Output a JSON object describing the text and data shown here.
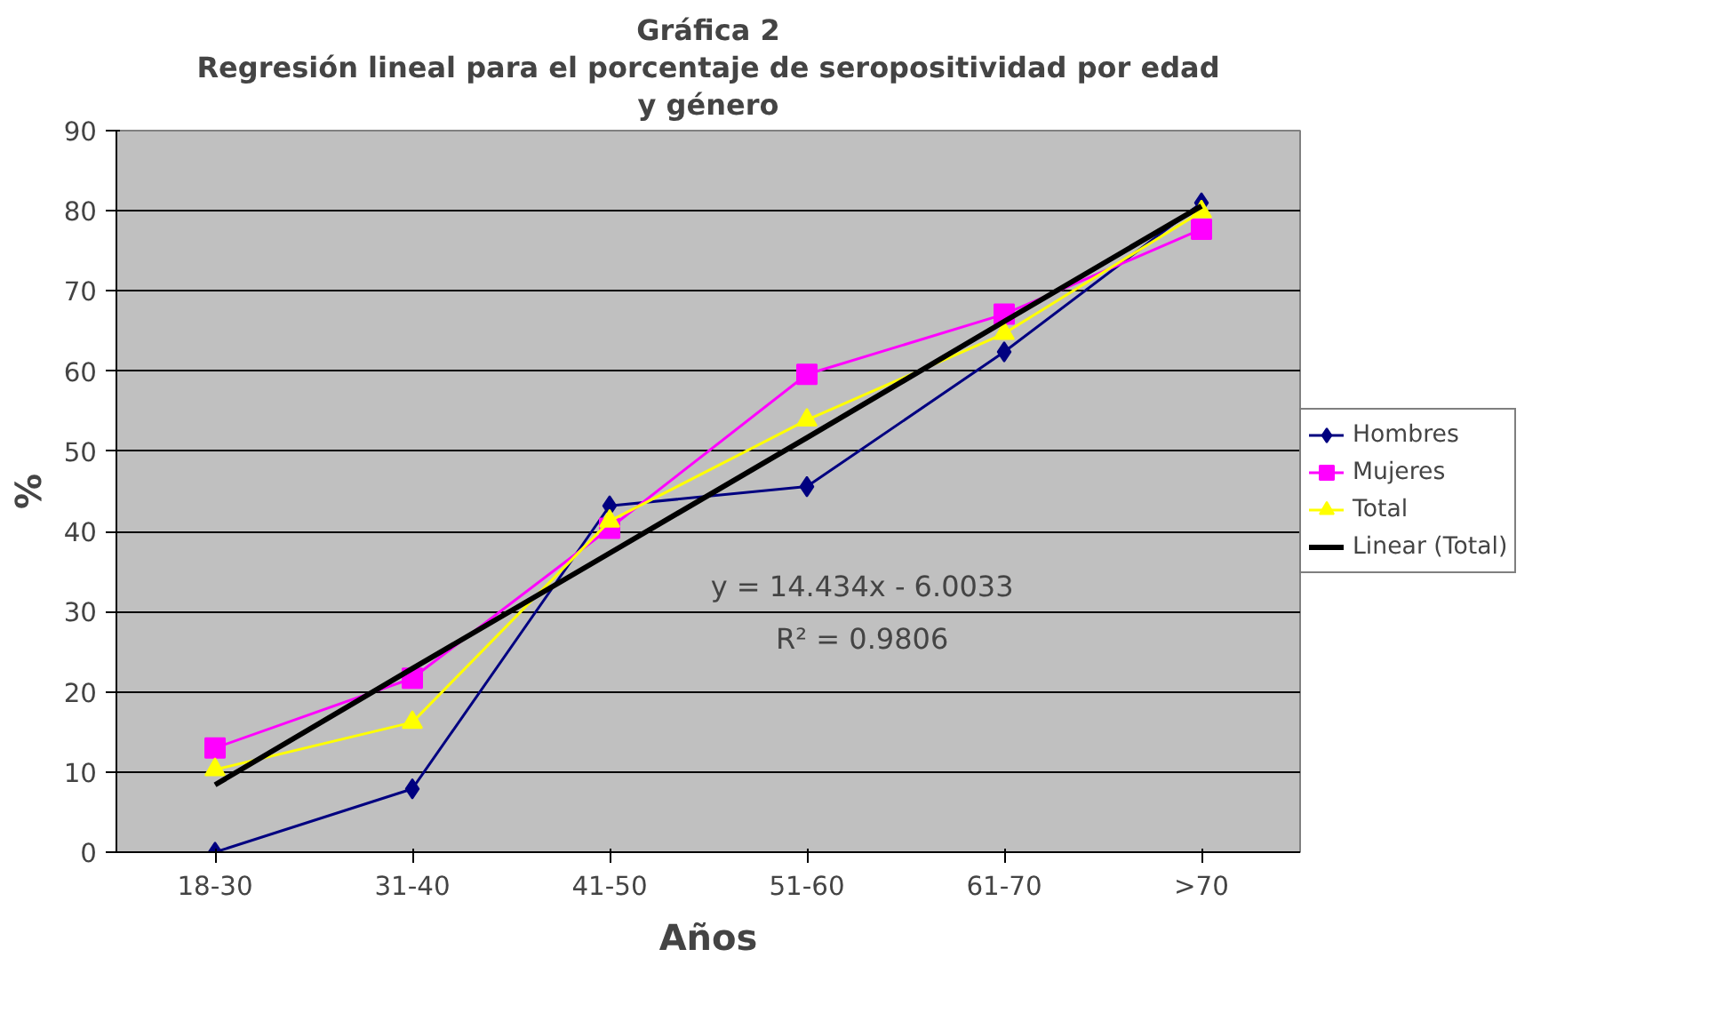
{
  "chart_data": {
    "type": "line",
    "title": "Gráfica 2\nRegresión lineal para el porcentaje de seropositividad por edad\ny género",
    "xlabel": "Años",
    "ylabel": "%",
    "categories": [
      "18-30",
      "31-40",
      "41-50",
      "51-60",
      "61-70",
      ">70"
    ],
    "series": [
      {
        "name": "Hombres",
        "color": "#000080",
        "marker": "diamond",
        "values": [
          0,
          7.9,
          43.2,
          45.6,
          62.4,
          81.0
        ]
      },
      {
        "name": "Mujeres",
        "color": "#ff00ff",
        "marker": "square",
        "values": [
          13.0,
          21.7,
          40.4,
          59.6,
          67.1,
          77.7
        ]
      },
      {
        "name": "Total",
        "color": "#ffff00",
        "marker": "triangle",
        "values": [
          10.3,
          16.2,
          41.3,
          53.9,
          64.7,
          79.9
        ]
      },
      {
        "name": "Linear (Total)",
        "color": "#000000",
        "marker": "none",
        "values": [
          8.4,
          22.9,
          37.3,
          51.7,
          66.2,
          80.6
        ]
      }
    ],
    "ylim": [
      0,
      90
    ],
    "yticks": [
      0,
      10,
      20,
      30,
      40,
      50,
      60,
      70,
      80,
      90
    ],
    "grid": "y",
    "legend": "right",
    "annotations": [
      "y = 14.434x - 6.0033",
      "R² = 0.9806"
    ]
  }
}
